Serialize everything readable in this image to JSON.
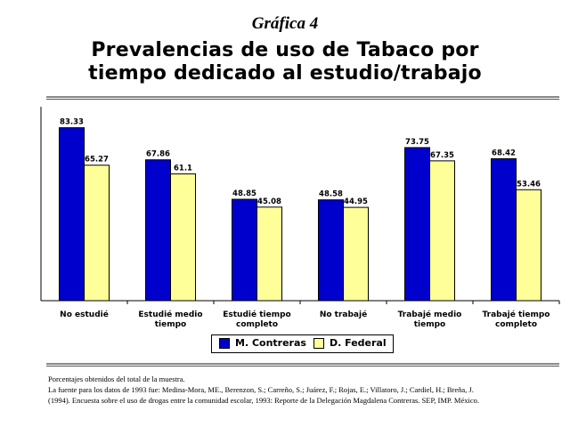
{
  "chart_data": {
    "type": "bar",
    "supertitle": "Gráfica 4",
    "title": "Prevalencias de uso de Tabaco por tiempo dedicado al estudio/trabajo",
    "title_lines": [
      "Prevalencias de uso de Tabaco por",
      "tiempo dedicado al estudio/trabajo"
    ],
    "categories": [
      [
        "No estudié"
      ],
      [
        "Estudié medio",
        "tiempo"
      ],
      [
        "Estudié tiempo",
        "completo"
      ],
      [
        "No trabajé"
      ],
      [
        "Trabajé medio",
        "tiempo"
      ],
      [
        "Trabajé tiempo",
        "completo"
      ]
    ],
    "series": [
      {
        "name": "M. Contreras",
        "color": "#0000cc",
        "values": [
          83.33,
          67.86,
          48.85,
          48.58,
          73.75,
          68.42
        ],
        "labels": [
          "83.33",
          "67.86",
          "48.85",
          "48.58",
          "73.75",
          "68.42"
        ]
      },
      {
        "name": "D. Federal",
        "color": "#ffff99",
        "values": [
          65.27,
          61.1,
          45.08,
          44.95,
          67.35,
          53.46
        ],
        "labels": [
          "65.27",
          "61.1",
          "45.08",
          "44.95",
          "67.35",
          "53.46"
        ]
      }
    ],
    "ylim": [
      0,
      90
    ],
    "grid": false,
    "legend_position": "bottom"
  },
  "notes": [
    "Porcentajes obtenidos del total de la muestra.",
    "La fuente para los datos de 1993 fue: Medina-Mora, ME., Berenzon, S.; Carreño, S.; Juárez, F.; Rojas, E.; Villatoro, J.; Cardiel, H.; Breña, J.",
    "(1994). Encuesta sobre el uso de drogas entre la comunidad escolar, 1993: Reporte de la Delegación Magdalena Contreras. SEP, IMP. México."
  ]
}
